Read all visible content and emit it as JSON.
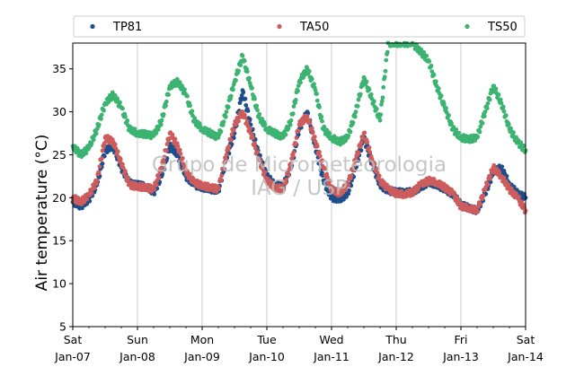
{
  "chart_data": {
    "type": "scatter",
    "title": "",
    "ylabel": "Air temperature (°C)",
    "xlabel": "",
    "xlim": [
      "2017-01-07 00:00",
      "2017-01-14 00:00"
    ],
    "ylim": [
      5,
      38
    ],
    "yticks": [
      5,
      10,
      15,
      20,
      25,
      30,
      35
    ],
    "xticks": [
      {
        "day": "Sat",
        "date": "Jan-07"
      },
      {
        "day": "Sun",
        "date": "Jan-08"
      },
      {
        "day": "Mon",
        "date": "Jan-09"
      },
      {
        "day": "Tue",
        "date": "Jan-10"
      },
      {
        "day": "Wed",
        "date": "Jan-11"
      },
      {
        "day": "Thu",
        "date": "Jan-12"
      },
      {
        "day": "Fri",
        "date": "Jan-13"
      },
      {
        "day": "Sat",
        "date": "Jan-14"
      }
    ],
    "grid": "vertical",
    "legend": "top",
    "watermark": [
      "Grupo de Micrometeorologia",
      "IAG / USP"
    ],
    "series": [
      {
        "name": "TP81",
        "color": "#1f4e8c",
        "x": [
          "2017-01-07 00:00",
          "2017-01-07 03:00",
          "2017-01-07 06:00",
          "2017-01-07 09:00",
          "2017-01-07 12:00",
          "2017-01-07 15:00",
          "2017-01-07 18:00",
          "2017-01-07 21:00",
          "2017-01-08 00:00",
          "2017-01-08 03:00",
          "2017-01-08 06:00",
          "2017-01-08 09:00",
          "2017-01-08 12:00",
          "2017-01-08 15:00",
          "2017-01-08 18:00",
          "2017-01-08 21:00",
          "2017-01-09 00:00",
          "2017-01-09 03:00",
          "2017-01-09 06:00",
          "2017-01-09 09:00",
          "2017-01-09 12:00",
          "2017-01-09 15:00",
          "2017-01-09 18:00",
          "2017-01-09 21:00",
          "2017-01-10 00:00",
          "2017-01-10 03:00",
          "2017-01-10 06:00",
          "2017-01-10 09:00",
          "2017-01-10 12:00",
          "2017-01-10 15:00",
          "2017-01-10 18:00",
          "2017-01-10 21:00",
          "2017-01-11 00:00",
          "2017-01-11 03:00",
          "2017-01-11 06:00",
          "2017-01-11 09:00",
          "2017-01-11 12:00",
          "2017-01-11 15:00",
          "2017-01-11 18:00",
          "2017-01-11 21:00",
          "2017-01-12 00:00",
          "2017-01-12 03:00",
          "2017-01-12 06:00",
          "2017-01-12 09:00",
          "2017-01-12 12:00",
          "2017-01-12 15:00",
          "2017-01-12 18:00",
          "2017-01-12 21:00",
          "2017-01-13 00:00",
          "2017-01-13 03:00",
          "2017-01-13 06:00",
          "2017-01-13 09:00",
          "2017-01-13 12:00",
          "2017-01-13 15:00",
          "2017-01-13 18:00",
          "2017-01-13 21:00",
          "2017-01-14 00:00"
        ],
        "y": [
          19.5,
          19.0,
          19.8,
          21.5,
          25.5,
          26.0,
          23.5,
          21.7,
          21.5,
          21.4,
          20.6,
          22.5,
          26.0,
          25.0,
          22.5,
          21.5,
          21.2,
          21.0,
          20.8,
          24.5,
          27.5,
          32.5,
          28.5,
          25.0,
          22.5,
          21.5,
          21.3,
          23.5,
          28.0,
          30.0,
          26.0,
          22.0,
          20.0,
          19.8,
          20.5,
          23.5,
          27.0,
          24.0,
          21.5,
          20.8,
          20.7,
          20.6,
          20.7,
          21.2,
          21.8,
          21.5,
          21.0,
          20.4,
          19.2,
          18.8,
          18.5,
          20.5,
          23.0,
          23.5,
          21.5,
          20.5,
          20.0
        ]
      },
      {
        "name": "TA50",
        "color": "#cd5c5c",
        "x": [
          "2017-01-07 00:00",
          "2017-01-07 03:00",
          "2017-01-07 06:00",
          "2017-01-07 09:00",
          "2017-01-07 12:00",
          "2017-01-07 15:00",
          "2017-01-07 18:00",
          "2017-01-07 21:00",
          "2017-01-08 00:00",
          "2017-01-08 03:00",
          "2017-01-08 06:00",
          "2017-01-08 09:00",
          "2017-01-08 12:00",
          "2017-01-08 15:00",
          "2017-01-08 18:00",
          "2017-01-08 21:00",
          "2017-01-09 00:00",
          "2017-01-09 03:00",
          "2017-01-09 06:00",
          "2017-01-09 09:00",
          "2017-01-09 12:00",
          "2017-01-09 15:00",
          "2017-01-09 18:00",
          "2017-01-09 21:00",
          "2017-01-10 00:00",
          "2017-01-10 03:00",
          "2017-01-10 06:00",
          "2017-01-10 09:00",
          "2017-01-10 12:00",
          "2017-01-10 15:00",
          "2017-01-10 18:00",
          "2017-01-10 21:00",
          "2017-01-11 00:00",
          "2017-01-11 03:00",
          "2017-01-11 06:00",
          "2017-01-11 09:00",
          "2017-01-11 12:00",
          "2017-01-11 15:00",
          "2017-01-11 18:00",
          "2017-01-11 21:00",
          "2017-01-12 00:00",
          "2017-01-12 03:00",
          "2017-01-12 06:00",
          "2017-01-12 09:00",
          "2017-01-12 12:00",
          "2017-01-12 15:00",
          "2017-01-12 18:00",
          "2017-01-12 21:00",
          "2017-01-13 00:00",
          "2017-01-13 03:00",
          "2017-01-13 06:00",
          "2017-01-13 09:00",
          "2017-01-13 12:00",
          "2017-01-13 15:00",
          "2017-01-13 18:00",
          "2017-01-13 21:00",
          "2017-01-14 00:00"
        ],
        "y": [
          20.0,
          19.5,
          20.3,
          22.0,
          27.0,
          26.5,
          24.0,
          21.5,
          21.3,
          21.2,
          21.0,
          23.5,
          27.5,
          26.0,
          23.0,
          21.8,
          21.4,
          21.2,
          21.0,
          25.0,
          28.5,
          30.0,
          27.5,
          24.5,
          22.0,
          21.2,
          21.0,
          24.0,
          28.5,
          29.5,
          26.5,
          23.5,
          21.0,
          20.5,
          21.5,
          24.5,
          27.5,
          24.5,
          22.0,
          21.0,
          20.5,
          20.4,
          20.6,
          21.5,
          22.0,
          21.8,
          21.2,
          20.5,
          19.0,
          18.8,
          18.5,
          21.0,
          23.5,
          22.5,
          21.0,
          20.0,
          18.5
        ]
      },
      {
        "name": "TS50",
        "color": "#3cb371",
        "x": [
          "2017-01-07 00:00",
          "2017-01-07 03:00",
          "2017-01-07 06:00",
          "2017-01-07 09:00",
          "2017-01-07 12:00",
          "2017-01-07 15:00",
          "2017-01-07 18:00",
          "2017-01-07 21:00",
          "2017-01-08 00:00",
          "2017-01-08 03:00",
          "2017-01-08 06:00",
          "2017-01-08 09:00",
          "2017-01-08 12:00",
          "2017-01-08 15:00",
          "2017-01-08 18:00",
          "2017-01-08 21:00",
          "2017-01-09 00:00",
          "2017-01-09 03:00",
          "2017-01-09 06:00",
          "2017-01-09 09:00",
          "2017-01-09 12:00",
          "2017-01-09 15:00",
          "2017-01-09 18:00",
          "2017-01-09 21:00",
          "2017-01-10 00:00",
          "2017-01-10 03:00",
          "2017-01-10 06:00",
          "2017-01-10 09:00",
          "2017-01-10 12:00",
          "2017-01-10 15:00",
          "2017-01-10 18:00",
          "2017-01-10 21:00",
          "2017-01-11 00:00",
          "2017-01-11 03:00",
          "2017-01-11 06:00",
          "2017-01-11 09:00",
          "2017-01-11 12:00",
          "2017-01-11 15:00",
          "2017-01-11 18:00",
          "2017-01-11 21:00",
          "2017-01-12 00:00",
          "2017-01-12 03:00",
          "2017-01-12 06:00",
          "2017-01-12 09:00",
          "2017-01-12 12:00",
          "2017-01-12 15:00",
          "2017-01-12 18:00",
          "2017-01-12 21:00",
          "2017-01-13 00:00",
          "2017-01-13 03:00",
          "2017-01-13 06:00",
          "2017-01-13 09:00",
          "2017-01-13 12:00",
          "2017-01-13 15:00",
          "2017-01-13 18:00",
          "2017-01-13 21:00",
          "2017-01-14 00:00"
        ],
        "y": [
          26.0,
          25.0,
          25.8,
          28.0,
          31.0,
          32.0,
          30.5,
          28.0,
          27.5,
          27.4,
          27.2,
          29.0,
          33.0,
          33.5,
          32.0,
          29.0,
          28.0,
          27.5,
          27.0,
          30.0,
          33.5,
          36.5,
          33.0,
          29.5,
          28.0,
          27.5,
          27.0,
          29.0,
          33.5,
          35.0,
          32.5,
          28.0,
          27.0,
          26.5,
          27.0,
          30.0,
          34.0,
          31.5,
          29.0,
          38.0,
          38.0,
          38.0,
          38.0,
          37.0,
          36.0,
          33.0,
          30.5,
          28.0,
          27.0,
          26.8,
          27.0,
          30.0,
          33.0,
          31.0,
          28.0,
          26.5,
          25.5
        ]
      }
    ]
  }
}
